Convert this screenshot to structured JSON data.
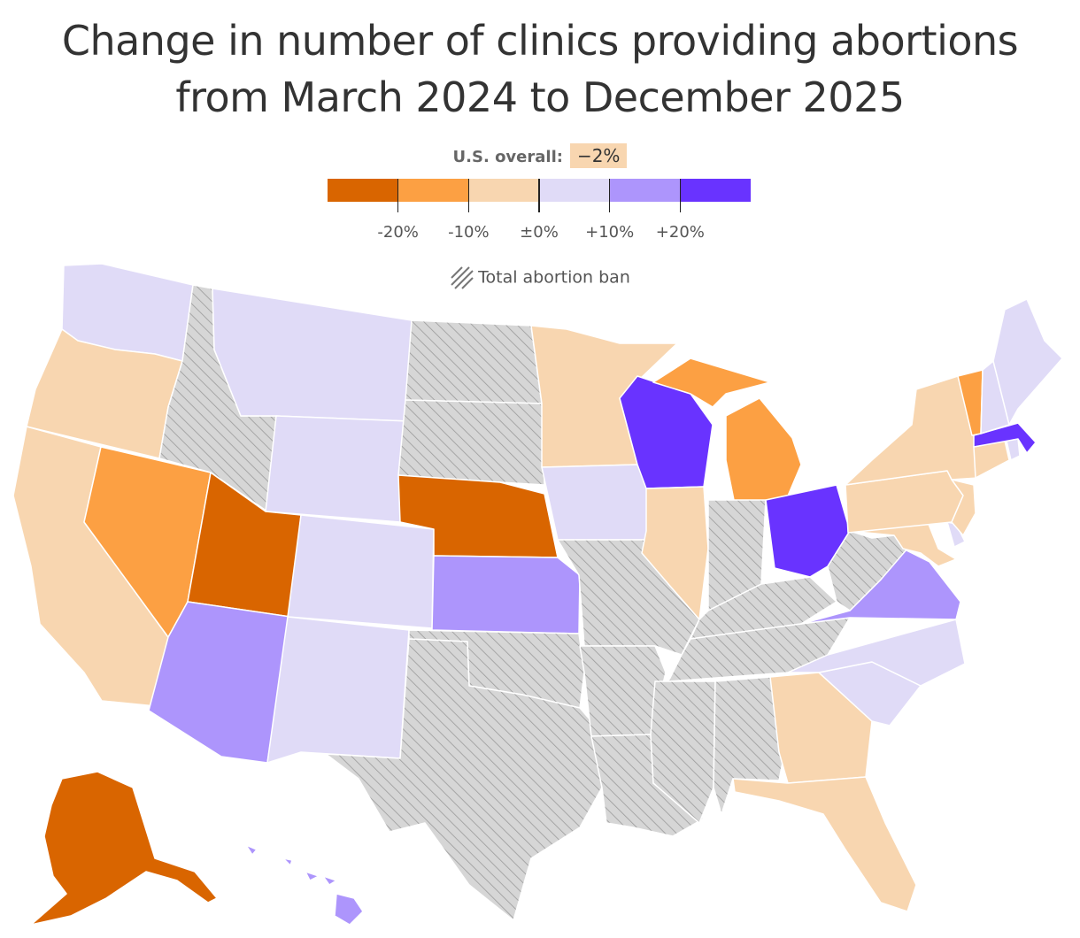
{
  "title": {
    "line1": "Change in number of clinics providing abortions",
    "line2": "from March 2024 to December 2025"
  },
  "overall": {
    "label": "U.S. overall:",
    "value": "−2%"
  },
  "legend": {
    "colors": [
      "#d96500",
      "#fca043",
      "#f8d6b0",
      "#e0dbf7",
      "#ad95fc",
      "#6933ff"
    ],
    "tick_labels": [
      "-20%",
      "-10%",
      "±0%",
      "+10%",
      "+20%"
    ],
    "ban_label": "Total abortion ban",
    "ban_fill": "#d6d6d6",
    "ban_stroke": "#9a9a9a"
  },
  "states": [
    {
      "name": "Washington",
      "bin": "+0 to +10%"
    },
    {
      "name": "Oregon",
      "bin": "-10% to 0"
    },
    {
      "name": "California",
      "bin": "-10% to 0"
    },
    {
      "name": "Nevada",
      "bin": "-20% to -10%"
    },
    {
      "name": "Idaho",
      "bin": "Total abortion ban"
    },
    {
      "name": "Montana",
      "bin": "+0 to +10%"
    },
    {
      "name": "Wyoming",
      "bin": "+0 to +10%"
    },
    {
      "name": "Utah",
      "bin": "below -20%"
    },
    {
      "name": "Arizona",
      "bin": "+10% to +20%"
    },
    {
      "name": "Colorado",
      "bin": "+0 to +10%"
    },
    {
      "name": "New Mexico",
      "bin": "+0 to +10%"
    },
    {
      "name": "North Dakota",
      "bin": "Total abortion ban"
    },
    {
      "name": "South Dakota",
      "bin": "Total abortion ban"
    },
    {
      "name": "Nebraska",
      "bin": "below -20%"
    },
    {
      "name": "Kansas",
      "bin": "+10% to +20%"
    },
    {
      "name": "Oklahoma",
      "bin": "Total abortion ban"
    },
    {
      "name": "Texas",
      "bin": "Total abortion ban"
    },
    {
      "name": "Minnesota",
      "bin": "-10% to 0"
    },
    {
      "name": "Iowa",
      "bin": "+0 to +10%"
    },
    {
      "name": "Missouri",
      "bin": "Total abortion ban"
    },
    {
      "name": "Arkansas",
      "bin": "Total abortion ban"
    },
    {
      "name": "Louisiana",
      "bin": "Total abortion ban"
    },
    {
      "name": "Wisconsin",
      "bin": "above +20%"
    },
    {
      "name": "Illinois",
      "bin": "-10% to 0"
    },
    {
      "name": "Michigan",
      "bin": "-20% to -10%"
    },
    {
      "name": "Indiana",
      "bin": "Total abortion ban"
    },
    {
      "name": "Ohio",
      "bin": "above +20%"
    },
    {
      "name": "Kentucky",
      "bin": "Total abortion ban"
    },
    {
      "name": "Tennessee",
      "bin": "Total abortion ban"
    },
    {
      "name": "Mississippi",
      "bin": "Total abortion ban"
    },
    {
      "name": "Alabama",
      "bin": "Total abortion ban"
    },
    {
      "name": "Georgia",
      "bin": "-10% to 0"
    },
    {
      "name": "Florida",
      "bin": "-10% to 0"
    },
    {
      "name": "South Carolina",
      "bin": "+0 to +10%"
    },
    {
      "name": "North Carolina",
      "bin": "+0 to +10%"
    },
    {
      "name": "Virginia",
      "bin": "+10% to +20%"
    },
    {
      "name": "West Virginia",
      "bin": "Total abortion ban"
    },
    {
      "name": "Maryland",
      "bin": "-10% to 0"
    },
    {
      "name": "Delaware",
      "bin": "+0 to +10%"
    },
    {
      "name": "Pennsylvania",
      "bin": "-10% to 0"
    },
    {
      "name": "New Jersey",
      "bin": "-10% to 0"
    },
    {
      "name": "New York",
      "bin": "-10% to 0"
    },
    {
      "name": "Connecticut",
      "bin": "-10% to 0"
    },
    {
      "name": "Rhode Island",
      "bin": "+0 to +10%"
    },
    {
      "name": "Massachusetts",
      "bin": "above +20%"
    },
    {
      "name": "Vermont",
      "bin": "-20% to -10%"
    },
    {
      "name": "New Hampshire",
      "bin": "+0 to +10%"
    },
    {
      "name": "Maine",
      "bin": "+0 to +10%"
    },
    {
      "name": "Alaska",
      "bin": "below -20%"
    },
    {
      "name": "Hawaii",
      "bin": "+10% to +20%"
    }
  ]
}
